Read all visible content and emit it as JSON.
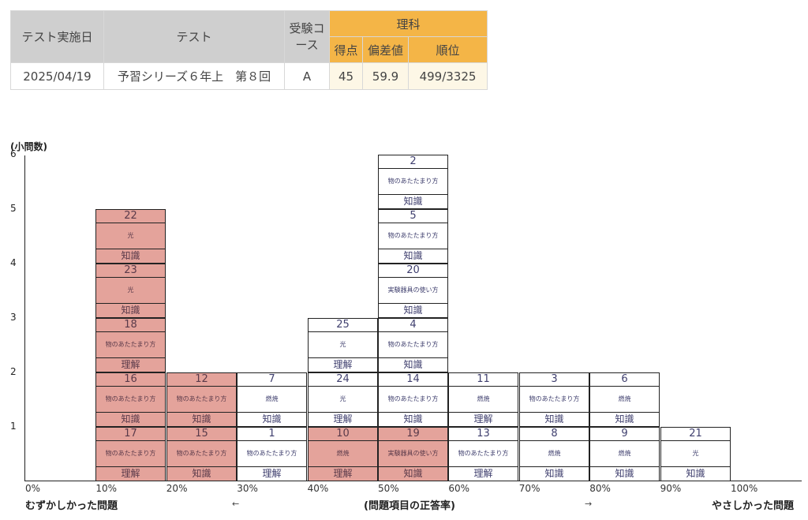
{
  "score_table": {
    "headers": {
      "date": "テスト実施日",
      "test": "テスト",
      "course": "受験コース",
      "subject": "理科",
      "points": "得点",
      "deviation": "偏差値",
      "rank": "順位"
    },
    "row": {
      "date": "2025/04/19",
      "test": "予習シリーズ６年上　第８回",
      "course": "A",
      "points": "45",
      "deviation": "59.9",
      "rank": "499/3325"
    },
    "colors": {
      "header_gray": "#cfcfcf",
      "header_orange": "#f4b547",
      "cell_cream": "#fdf7e6"
    }
  },
  "chart_data": {
    "type": "bar",
    "ylabel": "(小問数)",
    "xlabel": "(問題項目の正答率)",
    "x_left_label": "むずかしかった問題",
    "x_right_label": "やさしかった問題",
    "arrow_left": "←",
    "arrow_right": "→",
    "y_ticks": [
      "1",
      "2",
      "3",
      "4",
      "5",
      "6"
    ],
    "x_ticks": [
      "0%",
      "10%",
      "20%",
      "30%",
      "40%",
      "50%",
      "60%",
      "70%",
      "80%",
      "90%",
      "100%"
    ],
    "ylim": [
      0,
      6
    ],
    "highlight_color": "#e4a39b",
    "bins": [
      {
        "range": "10%",
        "items": [
          {
            "num": "17",
            "unit": "物のあたたまり方",
            "type": "理解",
            "highlight": true
          },
          {
            "num": "16",
            "unit": "物のあたたまり方",
            "type": "知識",
            "highlight": true
          },
          {
            "num": "18",
            "unit": "物のあたたまり方",
            "type": "理解",
            "highlight": true
          },
          {
            "num": "23",
            "unit": "光",
            "type": "知識",
            "highlight": true
          },
          {
            "num": "22",
            "unit": "光",
            "type": "知識",
            "highlight": true
          }
        ]
      },
      {
        "range": "20%",
        "items": [
          {
            "num": "15",
            "unit": "物のあたたまり方",
            "type": "知識",
            "highlight": true
          },
          {
            "num": "12",
            "unit": "物のあたたまり方",
            "type": "知識",
            "highlight": true
          }
        ]
      },
      {
        "range": "30%",
        "items": [
          {
            "num": "1",
            "unit": "物のあたたまり方",
            "type": "理解",
            "highlight": false
          },
          {
            "num": "7",
            "unit": "燃焼",
            "type": "知識",
            "highlight": false
          }
        ]
      },
      {
        "range": "40%",
        "items": [
          {
            "num": "10",
            "unit": "燃焼",
            "type": "理解",
            "highlight": true
          },
          {
            "num": "24",
            "unit": "光",
            "type": "理解",
            "highlight": false
          },
          {
            "num": "25",
            "unit": "光",
            "type": "理解",
            "highlight": false
          }
        ]
      },
      {
        "range": "50%",
        "items": [
          {
            "num": "19",
            "unit": "実験器具の使い方",
            "type": "知識",
            "highlight": true
          },
          {
            "num": "14",
            "unit": "物のあたたまり方",
            "type": "知識",
            "highlight": false
          },
          {
            "num": "4",
            "unit": "物のあたたまり方",
            "type": "知識",
            "highlight": false
          },
          {
            "num": "20",
            "unit": "実験器具の使い方",
            "type": "知識",
            "highlight": false
          },
          {
            "num": "5",
            "unit": "物のあたたまり方",
            "type": "知識",
            "highlight": false
          },
          {
            "num": "2",
            "unit": "物のあたたまり方",
            "type": "知識",
            "highlight": false
          }
        ]
      },
      {
        "range": "60%",
        "items": [
          {
            "num": "13",
            "unit": "物のあたたまり方",
            "type": "理解",
            "highlight": false
          },
          {
            "num": "11",
            "unit": "燃焼",
            "type": "理解",
            "highlight": false
          }
        ]
      },
      {
        "range": "70%",
        "items": [
          {
            "num": "8",
            "unit": "燃焼",
            "type": "知識",
            "highlight": false
          },
          {
            "num": "3",
            "unit": "物のあたたまり方",
            "type": "知識",
            "highlight": false
          }
        ]
      },
      {
        "range": "80%",
        "items": [
          {
            "num": "9",
            "unit": "燃焼",
            "type": "知識",
            "highlight": false
          },
          {
            "num": "6",
            "unit": "燃焼",
            "type": "知識",
            "highlight": false
          }
        ]
      },
      {
        "range": "90%",
        "items": [
          {
            "num": "21",
            "unit": "光",
            "type": "知識",
            "highlight": false
          }
        ]
      }
    ]
  }
}
